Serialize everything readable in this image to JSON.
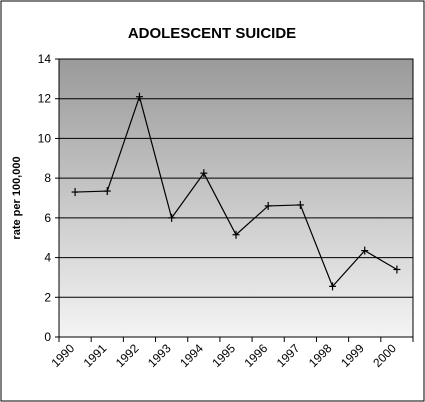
{
  "chart_data": {
    "type": "line",
    "title": "ADOLESCENT SUICIDE",
    "xlabel": "",
    "ylabel": "rate per 100,000",
    "categories": [
      "1990",
      "1991",
      "1992",
      "1993",
      "1994",
      "1995",
      "1996",
      "1997",
      "1998",
      "1999",
      "2000"
    ],
    "series": [
      {
        "values": [
          7.3,
          7.35,
          12.1,
          6.0,
          8.25,
          5.15,
          6.6,
          6.65,
          2.55,
          4.35,
          3.4
        ]
      }
    ],
    "ylim": [
      0,
      14
    ],
    "yticks": [
      0,
      2,
      4,
      6,
      8,
      10,
      12,
      14
    ],
    "grid": "horizontal",
    "legend": "none",
    "colors": {
      "line": "#000000",
      "plot_bg_top": "#9a9a9a",
      "plot_bg_bottom": "#f4f4f4",
      "gridline": "#000000",
      "border": "#000000"
    }
  }
}
